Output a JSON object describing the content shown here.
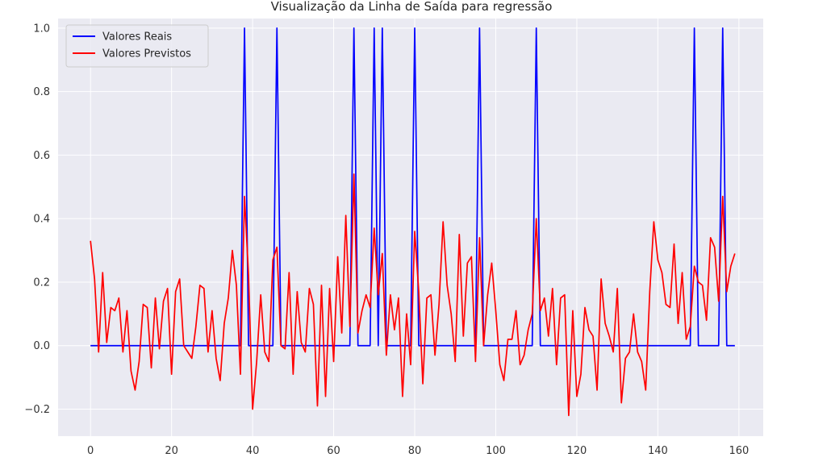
{
  "chart_data": {
    "type": "line",
    "title": "Visualização da Linha de Saída para regressão",
    "xlabel": "",
    "ylabel": "",
    "xlim": [
      -8,
      166
    ],
    "ylim": [
      -0.285,
      1.03
    ],
    "x_ticks": [
      0,
      20,
      40,
      60,
      80,
      100,
      120,
      140,
      160
    ],
    "y_ticks": [
      -0.2,
      0.0,
      0.2,
      0.4,
      0.6,
      0.8,
      1.0
    ],
    "x_tick_labels": [
      "0",
      "20",
      "40",
      "60",
      "80",
      "100",
      "120",
      "140",
      "160"
    ],
    "y_tick_labels": [
      "−0.2",
      "0.0",
      "0.2",
      "0.4",
      "0.6",
      "0.8",
      "1.0"
    ],
    "grid": true,
    "legend_position": "top-left",
    "series": [
      {
        "name": "Valores Reais",
        "color": "#0000ff",
        "x": [
          0,
          1,
          2,
          3,
          4,
          5,
          6,
          7,
          8,
          9,
          10,
          11,
          12,
          13,
          14,
          15,
          16,
          17,
          18,
          19,
          20,
          21,
          22,
          23,
          24,
          25,
          26,
          27,
          28,
          29,
          30,
          31,
          32,
          33,
          34,
          35,
          36,
          37,
          38,
          39,
          40,
          41,
          42,
          43,
          44,
          45,
          46,
          47,
          48,
          49,
          50,
          51,
          52,
          53,
          54,
          55,
          56,
          57,
          58,
          59,
          60,
          61,
          62,
          63,
          64,
          65,
          66,
          67,
          68,
          69,
          70,
          71,
          72,
          73,
          74,
          75,
          76,
          77,
          78,
          79,
          80,
          81,
          82,
          83,
          84,
          85,
          86,
          87,
          88,
          89,
          90,
          91,
          92,
          93,
          94,
          95,
          96,
          97,
          98,
          99,
          100,
          101,
          102,
          103,
          104,
          105,
          106,
          107,
          108,
          109,
          110,
          111,
          112,
          113,
          114,
          115,
          116,
          117,
          118,
          119,
          120,
          121,
          122,
          123,
          124,
          125,
          126,
          127,
          128,
          129,
          130,
          131,
          132,
          133,
          134,
          135,
          136,
          137,
          138,
          139,
          140,
          141,
          142,
          143,
          144,
          145,
          146,
          147,
          148,
          149,
          150,
          151,
          152,
          153,
          154,
          155,
          156,
          157,
          158,
          159
        ],
        "values": [
          0,
          0,
          0,
          0,
          0,
          0,
          0,
          0,
          0,
          0,
          0,
          0,
          0,
          0,
          0,
          0,
          0,
          0,
          0,
          0,
          0,
          0,
          0,
          0,
          0,
          0,
          0,
          0,
          0,
          0,
          0,
          0,
          0,
          0,
          0,
          0,
          0,
          0,
          1,
          0,
          0,
          0,
          0,
          0,
          0,
          0,
          1,
          0,
          0,
          0,
          0,
          0,
          0,
          0,
          0,
          0,
          0,
          0,
          0,
          0,
          0,
          0,
          0,
          0,
          0,
          1,
          0,
          0,
          0,
          0,
          1,
          0,
          1,
          0,
          0,
          0,
          0,
          0,
          0,
          0,
          1,
          0,
          0,
          0,
          0,
          0,
          0,
          0,
          0,
          0,
          0,
          0,
          0,
          0,
          0,
          0,
          1,
          0,
          0,
          0,
          0,
          0,
          0,
          0,
          0,
          0,
          0,
          0,
          0,
          0,
          1,
          0,
          0,
          0,
          0,
          0,
          0,
          0,
          0,
          0,
          0,
          0,
          0,
          0,
          0,
          0,
          0,
          0,
          0,
          0,
          0,
          0,
          0,
          0,
          0,
          0,
          0,
          0,
          0,
          0,
          0,
          0,
          0,
          0,
          0,
          0,
          0,
          0,
          0,
          1,
          0,
          0,
          0,
          0,
          0,
          0,
          1,
          0,
          0,
          0
        ]
      },
      {
        "name": "Valores Previstos",
        "color": "#ff0000",
        "x": [
          0,
          1,
          2,
          3,
          4,
          5,
          6,
          7,
          8,
          9,
          10,
          11,
          12,
          13,
          14,
          15,
          16,
          17,
          18,
          19,
          20,
          21,
          22,
          23,
          24,
          25,
          26,
          27,
          28,
          29,
          30,
          31,
          32,
          33,
          34,
          35,
          36,
          37,
          38,
          39,
          40,
          41,
          42,
          43,
          44,
          45,
          46,
          47,
          48,
          49,
          50,
          51,
          52,
          53,
          54,
          55,
          56,
          57,
          58,
          59,
          60,
          61,
          62,
          63,
          64,
          65,
          66,
          67,
          68,
          69,
          70,
          71,
          72,
          73,
          74,
          75,
          76,
          77,
          78,
          79,
          80,
          81,
          82,
          83,
          84,
          85,
          86,
          87,
          88,
          89,
          90,
          91,
          92,
          93,
          94,
          95,
          96,
          97,
          98,
          99,
          100,
          101,
          102,
          103,
          104,
          105,
          106,
          107,
          108,
          109,
          110,
          111,
          112,
          113,
          114,
          115,
          116,
          117,
          118,
          119,
          120,
          121,
          122,
          123,
          124,
          125,
          126,
          127,
          128,
          129,
          130,
          131,
          132,
          133,
          134,
          135,
          136,
          137,
          138,
          139,
          140,
          141,
          142,
          143,
          144,
          145,
          146,
          147,
          148,
          149,
          150,
          151,
          152,
          153,
          154,
          155,
          156,
          157,
          158,
          159
        ],
        "values": [
          0.33,
          0.21,
          -0.02,
          0.23,
          0.01,
          0.12,
          0.11,
          0.15,
          -0.02,
          0.11,
          -0.08,
          -0.14,
          -0.05,
          0.13,
          0.12,
          -0.07,
          0.15,
          -0.01,
          0.14,
          0.18,
          -0.09,
          0.17,
          0.21,
          0.0,
          -0.02,
          -0.04,
          0.06,
          0.19,
          0.18,
          -0.02,
          0.11,
          -0.04,
          -0.11,
          0.07,
          0.15,
          0.3,
          0.19,
          -0.09,
          0.47,
          0.22,
          -0.2,
          -0.05,
          0.16,
          -0.02,
          -0.05,
          0.27,
          0.31,
          0.0,
          -0.01,
          0.23,
          -0.09,
          0.17,
          0.01,
          -0.02,
          0.18,
          0.13,
          -0.19,
          0.19,
          -0.16,
          0.18,
          -0.05,
          0.28,
          0.04,
          0.41,
          0.06,
          0.54,
          0.04,
          0.11,
          0.16,
          0.12,
          0.37,
          0.16,
          0.29,
          -0.03,
          0.16,
          0.05,
          0.15,
          -0.16,
          0.1,
          -0.06,
          0.36,
          0.17,
          -0.12,
          0.15,
          0.16,
          -0.03,
          0.13,
          0.39,
          0.19,
          0.1,
          -0.05,
          0.35,
          0.03,
          0.26,
          0.28,
          -0.05,
          0.34,
          0.0,
          0.16,
          0.26,
          0.11,
          -0.06,
          -0.11,
          0.02,
          0.02,
          0.11,
          -0.06,
          -0.03,
          0.05,
          0.1,
          0.4,
          0.11,
          0.15,
          0.03,
          0.18,
          -0.06,
          0.15,
          0.16,
          -0.22,
          0.11,
          -0.16,
          -0.09,
          0.12,
          0.05,
          0.03,
          -0.14,
          0.21,
          0.07,
          0.03,
          -0.02,
          0.18,
          -0.18,
          -0.04,
          -0.02,
          0.1,
          -0.02,
          -0.05,
          -0.14,
          0.17,
          0.39,
          0.27,
          0.23,
          0.13,
          0.12,
          0.32,
          0.07,
          0.23,
          0.02,
          0.06,
          0.25,
          0.2,
          0.19,
          0.08,
          0.34,
          0.31,
          0.14,
          0.47,
          0.17,
          0.25,
          0.29
        ]
      }
    ]
  }
}
